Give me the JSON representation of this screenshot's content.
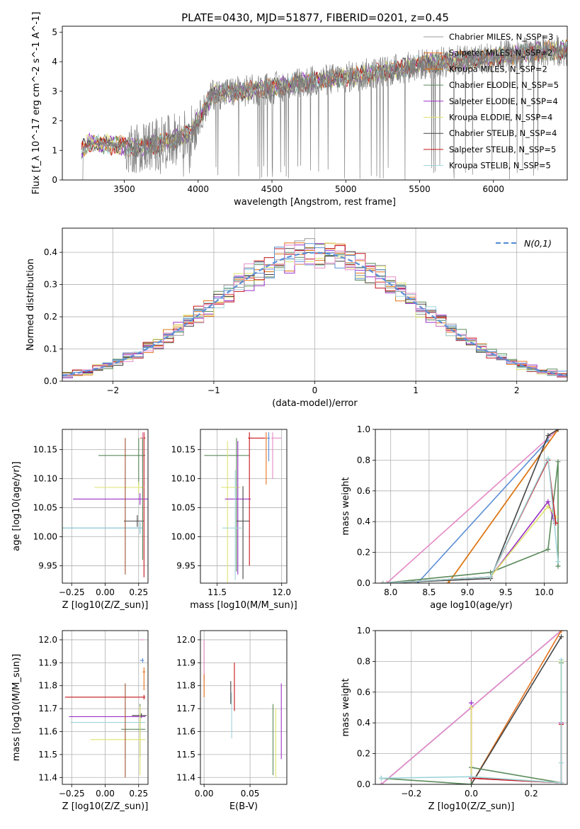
{
  "title": "PLATE=0430, MJD=51877, FIBERID=0201, z=0.45",
  "series": [
    {
      "name": "Chabrier MILES, N_SSP=3",
      "color": "#999999"
    },
    {
      "name": "Salpeter MILES, N_SSP=2",
      "color": "#e5731e"
    },
    {
      "name": "Kroupa MILES, N_SSP=2",
      "color": "#dd7715"
    },
    {
      "name": "Chabrier ELODIE, N_SSP=5",
      "color": "#5b8a5b"
    },
    {
      "name": "Salpeter ELODIE, N_SSP=4",
      "color": "#9b30c8"
    },
    {
      "name": "Kroupa ELODIE, N_SSP=4",
      "color": "#dfe36d"
    },
    {
      "name": "Chabrier STELIB, N_SSP=4",
      "color": "#444444"
    },
    {
      "name": "Salpeter STELIB, N_SSP=5",
      "color": "#c4141b"
    },
    {
      "name": "Kroupa STELIB, N_SSP=5",
      "color": "#9fd4d8"
    }
  ],
  "chart_data": [
    {
      "id": "spectrum",
      "type": "line",
      "xlabel": "wavelength [Angstrom, rest frame]",
      "ylabel": "Flux [f_λ 10^-17 erg cm^-2 s^-1 A^-1]",
      "xlim": [
        3080,
        6500
      ],
      "ylim": [
        0,
        5.2
      ],
      "xticks": [
        3500,
        4000,
        4500,
        5000,
        5500,
        6000
      ],
      "yticks": [
        0,
        1,
        2,
        3,
        4,
        5
      ],
      "data_color": "#808080",
      "data_x_range": [
        3200,
        6500
      ],
      "model_anchors": {
        "x": [
          3210,
          3260,
          3400,
          3600,
          3800,
          3950,
          4100,
          4300,
          4500,
          4700,
          4900,
          5100,
          5300,
          5500,
          5700,
          5900,
          6100,
          6300,
          6500
        ],
        "y": [
          1.0,
          1.25,
          1.2,
          1.1,
          1.3,
          1.6,
          2.9,
          3.0,
          3.1,
          3.3,
          3.4,
          3.55,
          3.7,
          3.9,
          4.0,
          4.1,
          4.2,
          4.35,
          4.4
        ]
      },
      "legend": "top-right",
      "grid": false
    },
    {
      "id": "residuals",
      "type": "histogram",
      "xlabel": "(data-model)/error",
      "ylabel": "Normed distribution",
      "xlim": [
        -2.5,
        2.5
      ],
      "ylim": [
        0,
        0.475
      ],
      "xticks": [
        -2,
        -1,
        0,
        1,
        2
      ],
      "yticks": [
        0.0,
        0.1,
        0.2,
        0.3,
        0.4
      ],
      "bin_edges_start": -2.5,
      "bin_width": 0.1,
      "n_bins": 50,
      "reference_curve": {
        "name": "N(0,1)",
        "mean": 0,
        "sigma": 1,
        "color": "#5b8fd6"
      },
      "legend": "top-right",
      "grid": true
    },
    {
      "id": "age-vs-Z",
      "type": "errorbar",
      "xlabel": "Z [log10(Z/Z_sun)]",
      "ylabel": "age [log10(age/yr)]",
      "xlim": [
        -0.32,
        0.32
      ],
      "ylim": [
        9.92,
        10.185
      ],
      "xticks": [
        -0.25,
        0.0,
        0.25
      ],
      "yticks": [
        9.95,
        10.0,
        10.05,
        10.1,
        10.15
      ],
      "points": [
        {
          "x": 0.25,
          "y": 10.14,
          "xerr": [
            0.3,
            0.05
          ],
          "yerr": [
            0.05,
            0.03
          ],
          "color": "#5b8a5b"
        },
        {
          "x": 0.28,
          "y": 10.17,
          "xerr": [
            0.02,
            0.02
          ],
          "yerr": [
            0.04,
            0.01
          ],
          "color": "#e5731e"
        },
        {
          "x": 0.29,
          "y": 10.17,
          "xerr": [
            0.01,
            0.01
          ],
          "yerr": [
            0.24,
            0.01
          ],
          "color": "#c4141b"
        },
        {
          "x": 0.28,
          "y": 10.17,
          "xerr": [
            0.01,
            0.01
          ],
          "yerr": [
            0.06,
            0.01
          ],
          "color": "#e58ac5"
        },
        {
          "x": 0.25,
          "y": 10.085,
          "xerr": [
            0.33,
            0.04
          ],
          "yerr": [
            0.01,
            0.01
          ],
          "color": "#dfe36d"
        },
        {
          "x": 0.26,
          "y": 10.065,
          "xerr": [
            0.5,
            0.06
          ],
          "yerr": [
            0.01,
            0.01
          ],
          "color": "#9b30c8"
        },
        {
          "x": 0.24,
          "y": 10.027,
          "xerr": [
            0.1,
            0.05
          ],
          "yerr": [
            0.01,
            0.01
          ],
          "color": "#444444"
        },
        {
          "x": 0.26,
          "y": 10.015,
          "xerr": [
            0.59,
            0.02
          ],
          "yerr": [
            0.01,
            0.01
          ],
          "color": "#5b8fd6"
        },
        {
          "x": 0.26,
          "y": 10.015,
          "xerr": [
            0.59,
            0.02
          ],
          "yerr": [
            0.01,
            0.01
          ],
          "color": "#9fd4d8"
        },
        {
          "x": 0.15,
          "y": 10.05,
          "xerr": [
            0.0,
            0.0
          ],
          "yerr": [
            0.115,
            0.12
          ],
          "color": "#a0522d"
        },
        {
          "x": 0.28,
          "y": 10.05,
          "xerr": [
            0.0,
            0.0
          ],
          "yerr": [
            0.09,
            0.12
          ],
          "color": "#5b8a5b"
        }
      ],
      "grid": true
    },
    {
      "id": "age-vs-mass",
      "type": "errorbar",
      "xlabel": "mass [log10(M/M_sun)]",
      "ylabel": "",
      "xlim": [
        11.37,
        12.04
      ],
      "ylim": [
        9.92,
        10.185
      ],
      "xticks": [
        11.5,
        12.0
      ],
      "yticks": [
        9.95,
        10.0,
        10.05,
        10.1,
        10.15
      ],
      "points": [
        {
          "x": 11.65,
          "y": 10.14,
          "xerr": [
            0.25,
            0.1
          ],
          "yerr": [
            0.2,
            0.03
          ],
          "color": "#5b8a5b"
        },
        {
          "x": 11.58,
          "y": 10.085,
          "xerr": [
            0.05,
            0.1
          ],
          "yerr": [
            0.17,
            0.08
          ],
          "color": "#dfe36d"
        },
        {
          "x": 11.66,
          "y": 10.065,
          "xerr": [
            0.1,
            0.1
          ],
          "yerr": [
            0.13,
            0.1
          ],
          "color": "#9b30c8"
        },
        {
          "x": 11.7,
          "y": 10.027,
          "xerr": [
            0.05,
            0.05
          ],
          "yerr": [
            0.1,
            0.06
          ],
          "color": "#444444"
        },
        {
          "x": 11.75,
          "y": 10.17,
          "xerr": [
            0.01,
            0.12
          ],
          "yerr": [
            0.22,
            0.01
          ],
          "color": "#c4141b"
        },
        {
          "x": 11.88,
          "y": 10.17,
          "xerr": [
            0.01,
            0.01
          ],
          "yerr": [
            0.08,
            0.01
          ],
          "color": "#e5731e"
        },
        {
          "x": 11.93,
          "y": 10.17,
          "xerr": [
            0.01,
            0.07
          ],
          "yerr": [
            0.07,
            0.01
          ],
          "color": "#e58ac5"
        },
        {
          "x": 11.9,
          "y": 10.17,
          "xerr": [
            0.01,
            0.01
          ],
          "yerr": [
            0.04,
            0.01
          ],
          "color": "#5b8fd6"
        },
        {
          "x": 11.64,
          "y": 10.015,
          "xerr": [
            0.1,
            0.05
          ],
          "yerr": [
            0.09,
            0.1
          ],
          "color": "#9fd4d8"
        }
      ],
      "grid": true
    },
    {
      "id": "massweight-vs-age",
      "type": "line",
      "xlabel": "age log10(age/yr)",
      "ylabel": "mass weight",
      "xlim": [
        7.8,
        10.3
      ],
      "ylim": [
        0,
        1.0
      ],
      "xticks": [
        8.0,
        8.5,
        9.0,
        9.5,
        10.0
      ],
      "yticks": [
        0.0,
        0.2,
        0.4,
        0.6,
        0.8,
        1.0
      ],
      "lines": [
        {
          "color": "#e58ac5",
          "x": [
            7.95,
            10.18
          ],
          "y": [
            0.0,
            1.0
          ]
        },
        {
          "color": "#5b8fd6",
          "x": [
            8.35,
            10.05
          ],
          "y": [
            0.0,
            0.93
          ]
        },
        {
          "color": "#e5731e",
          "x": [
            8.75,
            10.18
          ],
          "y": [
            0.0,
            1.0
          ]
        },
        {
          "color": "#dd7715",
          "x": [
            8.75,
            10.18
          ],
          "y": [
            0.0,
            1.0
          ]
        },
        {
          "color": "#444444",
          "x": [
            7.9,
            9.3,
            10.05,
            10.18
          ],
          "y": [
            0.0,
            0.03,
            0.96,
            1.0
          ]
        },
        {
          "color": "#5b8a5b",
          "x": [
            7.9,
            9.3,
            10.05,
            10.18,
            10.18
          ],
          "y": [
            0.0,
            0.07,
            0.22,
            0.79,
            0.11
          ]
        },
        {
          "color": "#9b30c8",
          "x": [
            7.9,
            9.3,
            10.05,
            10.12
          ],
          "y": [
            0.0,
            0.04,
            0.53,
            0.42
          ]
        },
        {
          "color": "#dfe36d",
          "x": [
            7.9,
            9.3,
            10.05,
            10.15
          ],
          "y": [
            0.0,
            0.04,
            0.5,
            0.43
          ]
        },
        {
          "color": "#c4141b",
          "x": [
            7.9,
            9.3,
            10.05,
            10.15
          ],
          "y": [
            0.0,
            0.04,
            0.8,
            0.39
          ]
        },
        {
          "color": "#9fd4d8",
          "x": [
            7.9,
            9.3,
            10.05,
            10.18
          ],
          "y": [
            0.0,
            0.04,
            0.81,
            0.14
          ]
        }
      ],
      "grid": true
    },
    {
      "id": "mass-vs-Z",
      "type": "errorbar",
      "xlabel": "Z [log10(Z/Z_sun)]",
      "ylabel": "mass [log10(M/M_sun)]",
      "xlim": [
        -0.32,
        0.32
      ],
      "ylim": [
        11.37,
        12.04
      ],
      "xticks": [
        -0.25,
        0.0,
        0.25
      ],
      "yticks": [
        11.4,
        11.5,
        11.6,
        11.7,
        11.8,
        11.9,
        12.0
      ],
      "points": [
        {
          "x": 0.28,
          "y": 12.0,
          "xerr": [
            0.02,
            0.01
          ],
          "yerr": [
            0.0,
            0.0
          ],
          "color": "#e58ac5"
        },
        {
          "x": 0.28,
          "y": 11.91,
          "xerr": [
            0.02,
            0.01
          ],
          "yerr": [
            0.01,
            0.01
          ],
          "color": "#5b8fd6"
        },
        {
          "x": 0.29,
          "y": 11.86,
          "xerr": [
            0.01,
            0.01
          ],
          "yerr": [
            0.08,
            0.02
          ],
          "color": "#e5731e"
        },
        {
          "x": 0.29,
          "y": 11.75,
          "xerr": [
            0.59,
            0.01
          ],
          "yerr": [
            0.01,
            0.01
          ],
          "color": "#c4141b"
        },
        {
          "x": 0.27,
          "y": 11.67,
          "xerr": [
            0.07,
            0.04
          ],
          "yerr": [
            0.01,
            0.01
          ],
          "color": "#444444"
        },
        {
          "x": 0.26,
          "y": 11.665,
          "xerr": [
            0.53,
            0.04
          ],
          "yerr": [
            0.01,
            0.01
          ],
          "color": "#9b30c8"
        },
        {
          "x": 0.26,
          "y": 11.64,
          "xerr": [
            0.52,
            0.04
          ],
          "yerr": [
            0.01,
            0.01
          ],
          "color": "#9fd4d8"
        },
        {
          "x": 0.26,
          "y": 11.61,
          "xerr": [
            0.14,
            0.04
          ],
          "yerr": [
            0.12,
            0.11
          ],
          "color": "#5b8a5b"
        },
        {
          "x": 0.26,
          "y": 11.565,
          "xerr": [
            0.37,
            0.04
          ],
          "yerr": [
            0.01,
            0.01
          ],
          "color": "#dfe36d"
        },
        {
          "x": 0.15,
          "y": 11.65,
          "xerr": [
            0.0,
            0.0
          ],
          "yerr": [
            0.25,
            0.16
          ],
          "color": "#a0522d"
        },
        {
          "x": 0.26,
          "y": 11.61,
          "xerr": [
            0.0,
            0.0
          ],
          "yerr": [
            0.2,
            0.1
          ],
          "color": "#dfe36d"
        }
      ],
      "grid": true
    },
    {
      "id": "mass-vs-EBV",
      "type": "errorbar",
      "xlabel": "E(B-V)",
      "ylabel": "",
      "xlim": [
        -0.004,
        0.09
      ],
      "ylim": [
        11.37,
        12.04
      ],
      "xticks": [
        0.0,
        0.05
      ],
      "yticks": [
        11.4,
        11.5,
        11.6,
        11.7,
        11.8,
        11.9,
        12.0
      ],
      "points": [
        {
          "x": 0.0,
          "y": 11.91,
          "xerr": [
            0.0,
            0.0
          ],
          "yerr": [
            0.09,
            0.09
          ],
          "color": "#e58ac5"
        },
        {
          "x": 0.0,
          "y": 11.81,
          "xerr": [
            0.0,
            0.0
          ],
          "yerr": [
            0.06,
            0.04
          ],
          "color": "#e5731e"
        },
        {
          "x": 0.029,
          "y": 11.77,
          "xerr": [
            0.0,
            0.0
          ],
          "yerr": [
            0.05,
            0.05
          ],
          "color": "#444444"
        },
        {
          "x": 0.033,
          "y": 11.79,
          "xerr": [
            0.0,
            0.0
          ],
          "yerr": [
            0.1,
            0.11
          ],
          "color": "#c4141b"
        },
        {
          "x": 0.03,
          "y": 11.67,
          "xerr": [
            0.0,
            0.0
          ],
          "yerr": [
            0.1,
            0.1
          ],
          "color": "#9fd4d8"
        },
        {
          "x": 0.075,
          "y": 11.61,
          "xerr": [
            0.0,
            0.0
          ],
          "yerr": [
            0.2,
            0.11
          ],
          "color": "#5b8a5b"
        },
        {
          "x": 0.078,
          "y": 11.57,
          "xerr": [
            0.0,
            0.0
          ],
          "yerr": [
            0.17,
            0.13
          ],
          "color": "#dfe36d"
        },
        {
          "x": 0.084,
          "y": 11.65,
          "xerr": [
            0.0,
            0.0
          ],
          "yerr": [
            0.17,
            0.16
          ],
          "color": "#9b30c8"
        }
      ],
      "grid": true
    },
    {
      "id": "massweight-vs-Z",
      "type": "line",
      "xlabel": "Z [log10(Z/Z_sun)]",
      "ylabel": "mass weight",
      "xlim": [
        -0.32,
        0.32
      ],
      "ylim": [
        0,
        1.0
      ],
      "xticks": [
        -0.2,
        0.0,
        0.2
      ],
      "yticks": [
        0.0,
        0.2,
        0.4,
        0.6,
        0.8,
        1.0
      ],
      "lines": [
        {
          "color": "#5b8fd6",
          "x": [
            -0.3,
            0.0,
            0.3
          ],
          "y": [
            0.0,
            0.5,
            1.0
          ]
        },
        {
          "color": "#e58ac5",
          "x": [
            -0.3,
            0.0,
            0.3
          ],
          "y": [
            0.0,
            0.5,
            1.0
          ]
        },
        {
          "color": "#e5731e",
          "x": [
            0.0,
            0.3
          ],
          "y": [
            0.0,
            1.0
          ]
        },
        {
          "color": "#444444",
          "x": [
            0.0,
            0.3
          ],
          "y": [
            0.0,
            0.96
          ]
        },
        {
          "color": "#5b8a5b",
          "x": [
            -0.3,
            0.0,
            0.0,
            0.3,
            0.3
          ],
          "y": [
            0.04,
            0.0,
            0.11,
            0.01,
            0.79
          ]
        },
        {
          "color": "#9b30c8",
          "x": [
            0.0,
            0.0,
            0.3,
            0.3
          ],
          "y": [
            0.53,
            0.04,
            0.01,
            0.4
          ]
        },
        {
          "color": "#dfe36d",
          "x": [
            0.0,
            0.0,
            0.3,
            0.3
          ],
          "y": [
            0.5,
            0.05,
            0.01,
            0.8
          ]
        },
        {
          "color": "#c4141b",
          "x": [
            0.0,
            0.3,
            0.3
          ],
          "y": [
            0.04,
            0.01,
            0.39
          ]
        },
        {
          "color": "#9fd4d8",
          "x": [
            -0.3,
            0.0,
            0.3,
            0.3,
            0.3
          ],
          "y": [
            0.04,
            0.05,
            0.01,
            0.81,
            0.14
          ]
        }
      ],
      "grid": true
    }
  ]
}
